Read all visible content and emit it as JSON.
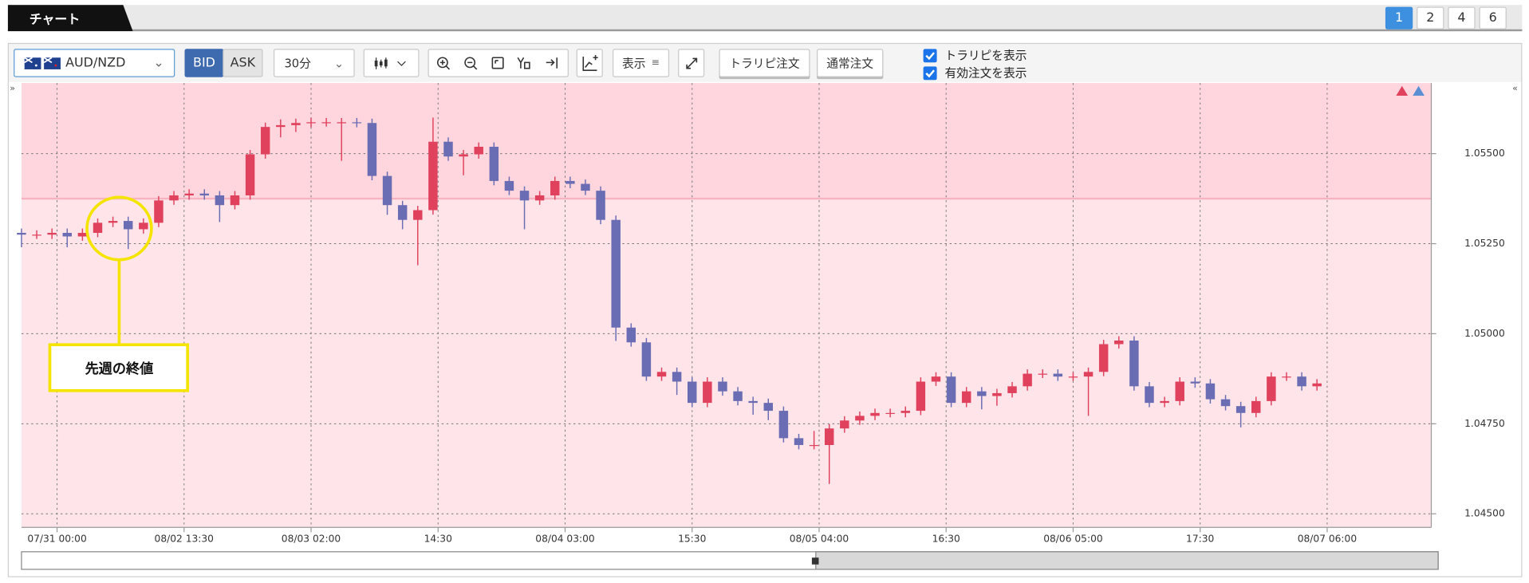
{
  "tab": {
    "title": "チャート",
    "pages": [
      "1",
      "2",
      "4",
      "6"
    ]
  },
  "toolbar": {
    "symbol": "AUD/NZD",
    "bid": "BID",
    "ask": "ASK",
    "interval": "30分",
    "display": "表示",
    "traripi_order": "トラリピ注文",
    "normal_order": "通常注文",
    "checkboxes": [
      "トラリピを表示",
      "有効注文を表示"
    ]
  },
  "chart_data": {
    "type": "candlestick",
    "x": [
      -7,
      -4,
      -1,
      2,
      5,
      8,
      11,
      14,
      17,
      20,
      23,
      26,
      29,
      32,
      35,
      38,
      41,
      44,
      47,
      50,
      53,
      56,
      59,
      62,
      65,
      68,
      71,
      74,
      77,
      80,
      83,
      86,
      89,
      92,
      95,
      98,
      101,
      104,
      107,
      110,
      113,
      116,
      119,
      122,
      125,
      128,
      131,
      134,
      137,
      140,
      143,
      146,
      149,
      152,
      155,
      158,
      161,
      164,
      167,
      170,
      173,
      176,
      179,
      182,
      185,
      188,
      191,
      194,
      197,
      200,
      203,
      206,
      209,
      212,
      215,
      218,
      221,
      224,
      227,
      230,
      233,
      236,
      239,
      242,
      245,
      248
    ],
    "open": [
      1.0528,
      1.05275,
      1.05275,
      1.0528,
      1.0527,
      1.0528,
      1.05308,
      1.05313,
      1.0529,
      1.05308,
      1.0537,
      1.05384,
      1.05389,
      1.05384,
      1.05357,
      1.05384,
      1.05498,
      1.05574,
      1.05579,
      1.05585,
      1.05587,
      1.05587,
      1.05587,
      1.05585,
      1.05438,
      1.05357,
      1.05316,
      1.05343,
      1.05533,
      1.05492,
      1.05498,
      1.05519,
      1.05424,
      1.05397,
      1.0537,
      1.05384,
      1.05424,
      1.05416,
      1.05397,
      1.05316,
      1.05017,
      1.04976,
      1.04881,
      1.04894,
      1.04867,
      1.04808,
      1.04867,
      1.0484,
      1.04813,
      1.04808,
      1.04786,
      1.0471,
      1.04691,
      1.04691,
      1.04737,
      1.04759,
      1.04772,
      1.0478,
      1.0478,
      1.04786,
      1.04867,
      1.04881,
      1.04808,
      1.0484,
      1.04827,
      1.04835,
      1.04854,
      1.04889,
      1.04889,
      1.04881,
      1.04881,
      1.04894,
      1.04971,
      1.04981,
      1.04854,
      1.04808,
      1.04813,
      1.04867,
      1.04862,
      1.04818,
      1.04799,
      1.0478,
      1.04813,
      1.04881,
      1.04881,
      1.04854
    ],
    "high": [
      1.05292,
      1.05287,
      1.05292,
      1.05292,
      1.05292,
      1.0532,
      1.05325,
      1.05325,
      1.0532,
      1.05382,
      1.05396,
      1.05401,
      1.05401,
      1.05396,
      1.05396,
      1.0551,
      1.05586,
      1.05595,
      1.05597,
      1.05599,
      1.05599,
      1.05599,
      1.05599,
      1.05597,
      1.0545,
      1.05369,
      1.05355,
      1.056,
      1.05545,
      1.0551,
      1.05531,
      1.05531,
      1.05436,
      1.05409,
      1.05396,
      1.05436,
      1.05436,
      1.05428,
      1.05409,
      1.05328,
      1.05029,
      1.04988,
      1.04906,
      1.04906,
      1.04879,
      1.04879,
      1.04879,
      1.04852,
      1.04825,
      1.0482,
      1.04798,
      1.04722,
      1.0473,
      1.04749,
      1.04771,
      1.04784,
      1.04792,
      1.04792,
      1.04798,
      1.04879,
      1.04893,
      1.04893,
      1.04852,
      1.04852,
      1.04847,
      1.04866,
      1.04901,
      1.04901,
      1.04901,
      1.04893,
      1.04906,
      1.04983,
      1.04993,
      1.04993,
      1.04866,
      1.04825,
      1.04879,
      1.04879,
      1.04874,
      1.0483,
      1.04811,
      1.04825,
      1.04893,
      1.04893,
      1.04893,
      1.04874
    ],
    "low": [
      1.0524,
      1.05263,
      1.05263,
      1.0524,
      1.05258,
      1.05268,
      1.05296,
      1.05235,
      1.05278,
      1.05296,
      1.05358,
      1.05372,
      1.05372,
      1.0531,
      1.05345,
      1.05372,
      1.05486,
      1.05545,
      1.0556,
      1.05573,
      1.05575,
      1.0548,
      1.05573,
      1.05426,
      1.0533,
      1.0529,
      1.0519,
      1.05331,
      1.0548,
      1.0544,
      1.05486,
      1.05412,
      1.05385,
      1.0529,
      1.05358,
      1.05372,
      1.05404,
      1.05385,
      1.05304,
      1.0498,
      1.04964,
      1.04869,
      1.04869,
      1.0483,
      1.04796,
      1.04796,
      1.04828,
      1.04801,
      1.04775,
      1.0476,
      1.04698,
      1.04679,
      1.04679,
      1.04583,
      1.04725,
      1.04747,
      1.0476,
      1.04768,
      1.04768,
      1.04774,
      1.04855,
      1.04796,
      1.04796,
      1.0479,
      1.048,
      1.04823,
      1.04842,
      1.04877,
      1.04869,
      1.04869,
      1.04772,
      1.04882,
      1.04959,
      1.04842,
      1.04796,
      1.04796,
      1.04801,
      1.0485,
      1.04806,
      1.04787,
      1.0474,
      1.04768,
      1.04801,
      1.04869,
      1.04842,
      1.04842
    ],
    "close": [
      1.05275,
      1.05275,
      1.0528,
      1.0527,
      1.0528,
      1.05308,
      1.05313,
      1.0529,
      1.05308,
      1.0537,
      1.05384,
      1.05389,
      1.05384,
      1.05357,
      1.05384,
      1.05498,
      1.05574,
      1.05579,
      1.05585,
      1.05587,
      1.05587,
      1.05587,
      1.05585,
      1.05438,
      1.05357,
      1.05316,
      1.05343,
      1.05533,
      1.05492,
      1.05498,
      1.05519,
      1.05424,
      1.05397,
      1.0537,
      1.05384,
      1.05424,
      1.05416,
      1.05397,
      1.05316,
      1.05017,
      1.04976,
      1.04881,
      1.04894,
      1.04867,
      1.04808,
      1.04867,
      1.0484,
      1.04813,
      1.04808,
      1.04786,
      1.0471,
      1.04691,
      1.04691,
      1.04737,
      1.04759,
      1.04772,
      1.0478,
      1.0478,
      1.04786,
      1.04867,
      1.04881,
      1.04808,
      1.0484,
      1.04827,
      1.04835,
      1.04854,
      1.04889,
      1.04889,
      1.04881,
      1.04881,
      1.04894,
      1.04971,
      1.04981,
      1.04854,
      1.04808,
      1.04813,
      1.04867,
      1.04862,
      1.04818,
      1.04799,
      1.0478,
      1.04813,
      1.04881,
      1.04881,
      1.04854,
      1.04862
    ],
    "up_color": "#e0415c",
    "down_color": "#6a6db3",
    "xlim": [
      -7,
      270.5
    ],
    "xticks": [
      {
        "value": 0,
        "label": "07/31 00:00"
      },
      {
        "value": 25,
        "label": "08/02 13:30"
      },
      {
        "value": 50,
        "label": "08/03 02:00"
      },
      {
        "value": 75,
        "label": "14:30"
      },
      {
        "value": 100,
        "label": "08/04 03:00"
      },
      {
        "value": 125,
        "label": "15:30"
      },
      {
        "value": 150,
        "label": "08/05 04:00"
      },
      {
        "value": 175,
        "label": "16:30"
      },
      {
        "value": 200,
        "label": "08/06 05:00"
      },
      {
        "value": 225,
        "label": "17:30"
      },
      {
        "value": 250,
        "label": "08/07 06:00"
      }
    ],
    "ylim": [
      1.04476,
      1.05696
    ],
    "yticks": [
      {
        "value": 1.045,
        "label": "1.04500"
      },
      {
        "value": 1.0475,
        "label": "1.04750"
      },
      {
        "value": 1.05,
        "label": "1.05000"
      },
      {
        "value": 1.0525,
        "label": "1.05250"
      },
      {
        "value": 1.055,
        "label": "1.05500"
      }
    ],
    "grid": true,
    "highlight_from": 1.05375,
    "annotation": "先週の終値"
  }
}
